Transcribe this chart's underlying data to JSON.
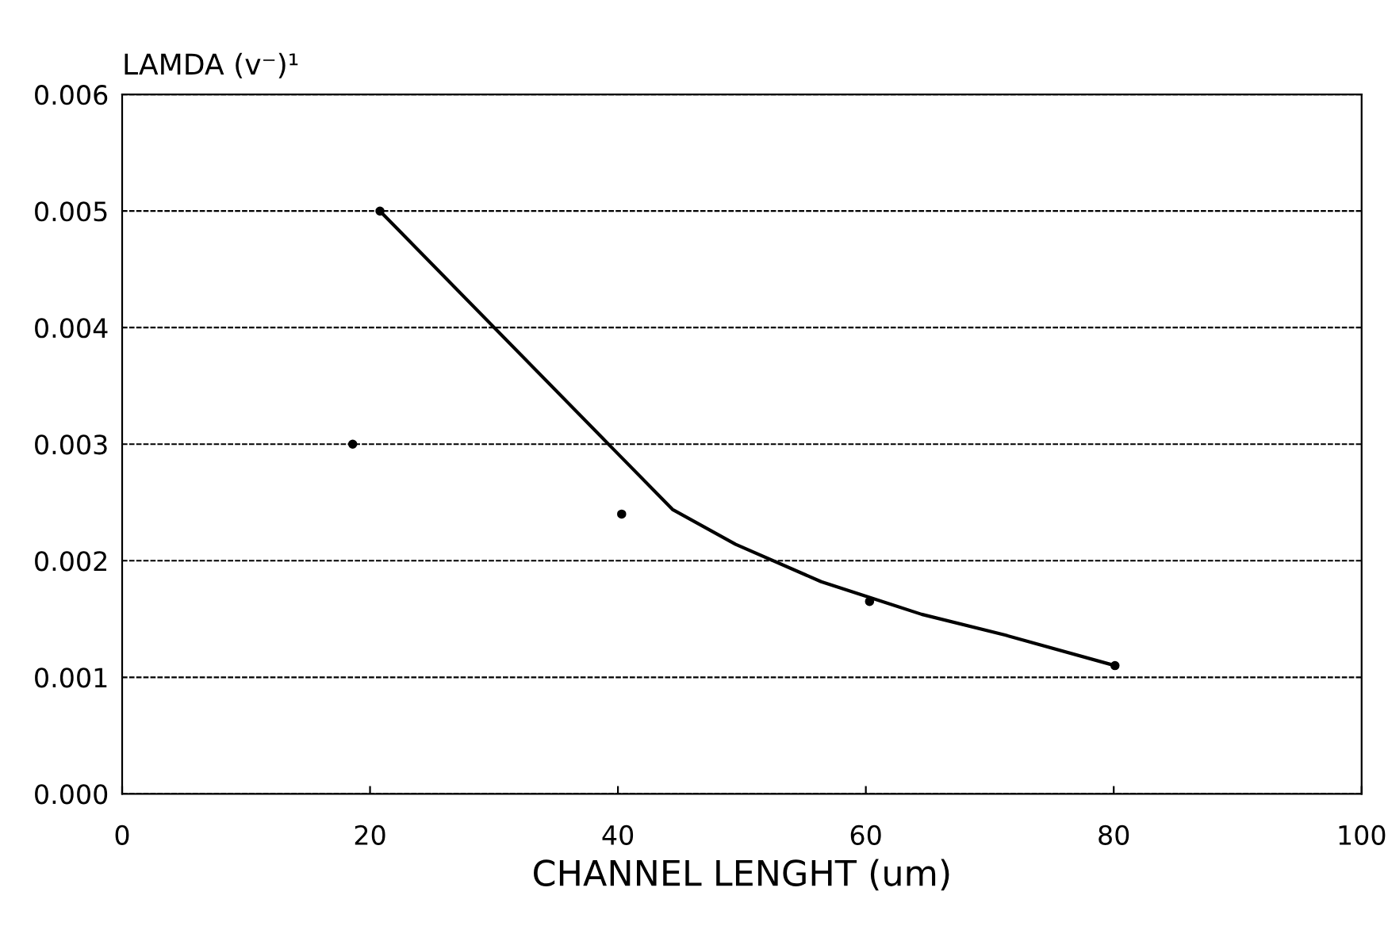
{
  "chart_data": {
    "type": "line",
    "xlabel": "CHANNEL LENGHT (um)",
    "ylabel": "LAMDA (v⁻)¹",
    "xlim": [
      0,
      100
    ],
    "xticks": [
      0,
      20,
      40,
      60,
      80,
      100
    ],
    "ylim": [
      0,
      0.006
    ],
    "yticks": [
      {
        "value": 0,
        "label": "0.000"
      },
      {
        "value": 0.001,
        "label": "0.001"
      },
      {
        "value": 0.002,
        "label": "0.002"
      },
      {
        "value": 0.003,
        "label": "0.003"
      },
      {
        "value": 0.004,
        "label": "0.004"
      },
      {
        "value": 0.005,
        "label": "0.005"
      },
      {
        "value": 0.006,
        "label": "0.006"
      }
    ],
    "grid": "y",
    "legend": false,
    "series": [
      {
        "color": "#000000",
        "marker": "none",
        "x": [
          20.8,
          39.7,
          44.4,
          49.5,
          56.4,
          64.5,
          71.3,
          80.1
        ],
        "values": [
          0.005,
          0.00295,
          0.00244,
          0.00214,
          0.00182,
          0.00154,
          0.00136,
          0.0011
        ]
      },
      {
        "type": "scatter",
        "color": "#000000",
        "marker": "circle",
        "x": [
          18.6,
          20.8,
          40.3,
          60.3,
          80.1
        ],
        "values": [
          0.003,
          0.005,
          0.0024,
          0.00165,
          0.0011
        ]
      }
    ]
  }
}
